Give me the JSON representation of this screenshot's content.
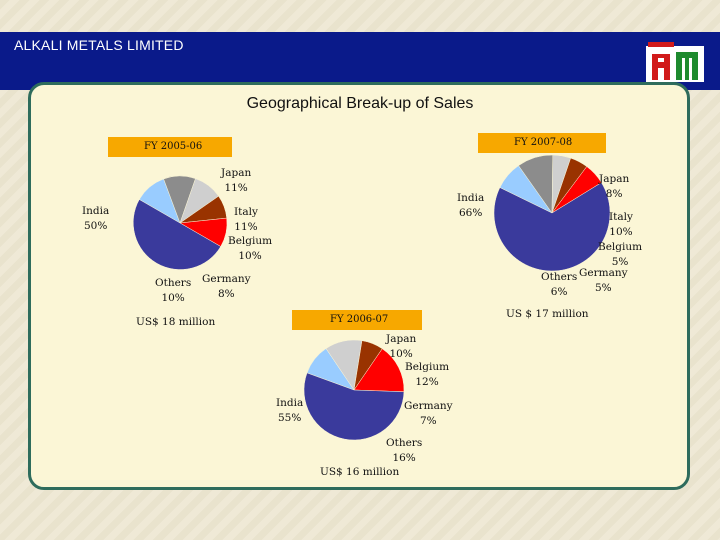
{
  "header": {
    "title": "ALKALI METALS LIMITED"
  },
  "slide_title": "Geographical Break-up of Sales",
  "colors": {
    "India": "#3a3a9c",
    "Japan": "#99ccff",
    "Italy": "#8c8c8c",
    "Belgium": "#cfcfcf",
    "Germany": "#993300",
    "Others": "#ff0000"
  },
  "chart_data": [
    {
      "type": "pie",
      "title": "FY 2005-06",
      "total": "US$ 18 million",
      "slices": [
        {
          "label": "Japan",
          "value": 11,
          "pct_label": "11%"
        },
        {
          "label": "Italy",
          "value": 11,
          "pct_label": "11%"
        },
        {
          "label": "Belgium",
          "value": 10,
          "pct_label": "10%"
        },
        {
          "label": "Germany",
          "value": 8,
          "pct_label": "8%"
        },
        {
          "label": "Others",
          "value": 10,
          "pct_label": "10%"
        },
        {
          "label": "India",
          "value": 50,
          "pct_label": "50%"
        }
      ]
    },
    {
      "type": "pie",
      "title": "FY 2006-07",
      "total": "US$ 16 million",
      "slices": [
        {
          "label": "Japan",
          "value": 10,
          "pct_label": "10%"
        },
        {
          "label": "Belgium",
          "value": 12,
          "pct_label": "12%"
        },
        {
          "label": "Germany",
          "value": 7,
          "pct_label": "7%"
        },
        {
          "label": "Others",
          "value": 16,
          "pct_label": "16%"
        },
        {
          "label": "India",
          "value": 55,
          "pct_label": "55%"
        }
      ]
    },
    {
      "type": "pie",
      "title": "FY 2007-08",
      "total": "US $ 17 million",
      "slices": [
        {
          "label": "Japan",
          "value": 8,
          "pct_label": "8%"
        },
        {
          "label": "Italy",
          "value": 10,
          "pct_label": "10%"
        },
        {
          "label": "Belgium",
          "value": 5,
          "pct_label": "5%"
        },
        {
          "label": "Germany",
          "value": 5,
          "pct_label": "5%"
        },
        {
          "label": "Others",
          "value": 6,
          "pct_label": "6%"
        },
        {
          "label": "India",
          "value": 66,
          "pct_label": "66%"
        }
      ]
    }
  ]
}
